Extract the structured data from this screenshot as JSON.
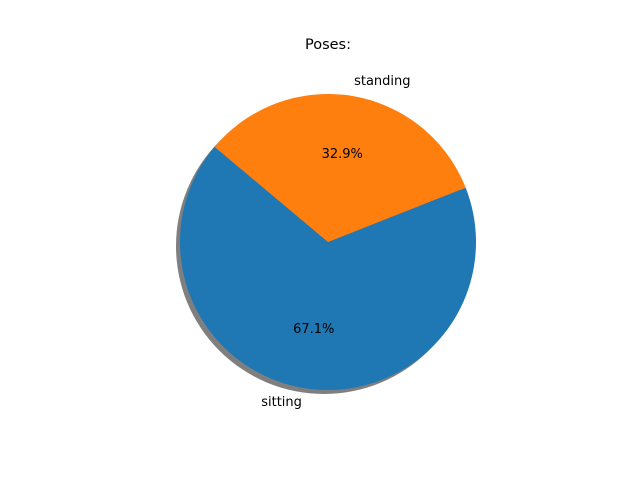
{
  "chart_data": {
    "type": "pie",
    "title": "Poses:",
    "slices": [
      {
        "label": "sitting",
        "value": 67.1,
        "pct_label": "67.1%",
        "color": "#1f77b4"
      },
      {
        "label": "standing",
        "value": 32.9,
        "pct_label": "32.9%",
        "color": "#ff7f0e"
      }
    ],
    "shadow": true,
    "shadow_color": "#7f7f7f",
    "legend": "none"
  }
}
